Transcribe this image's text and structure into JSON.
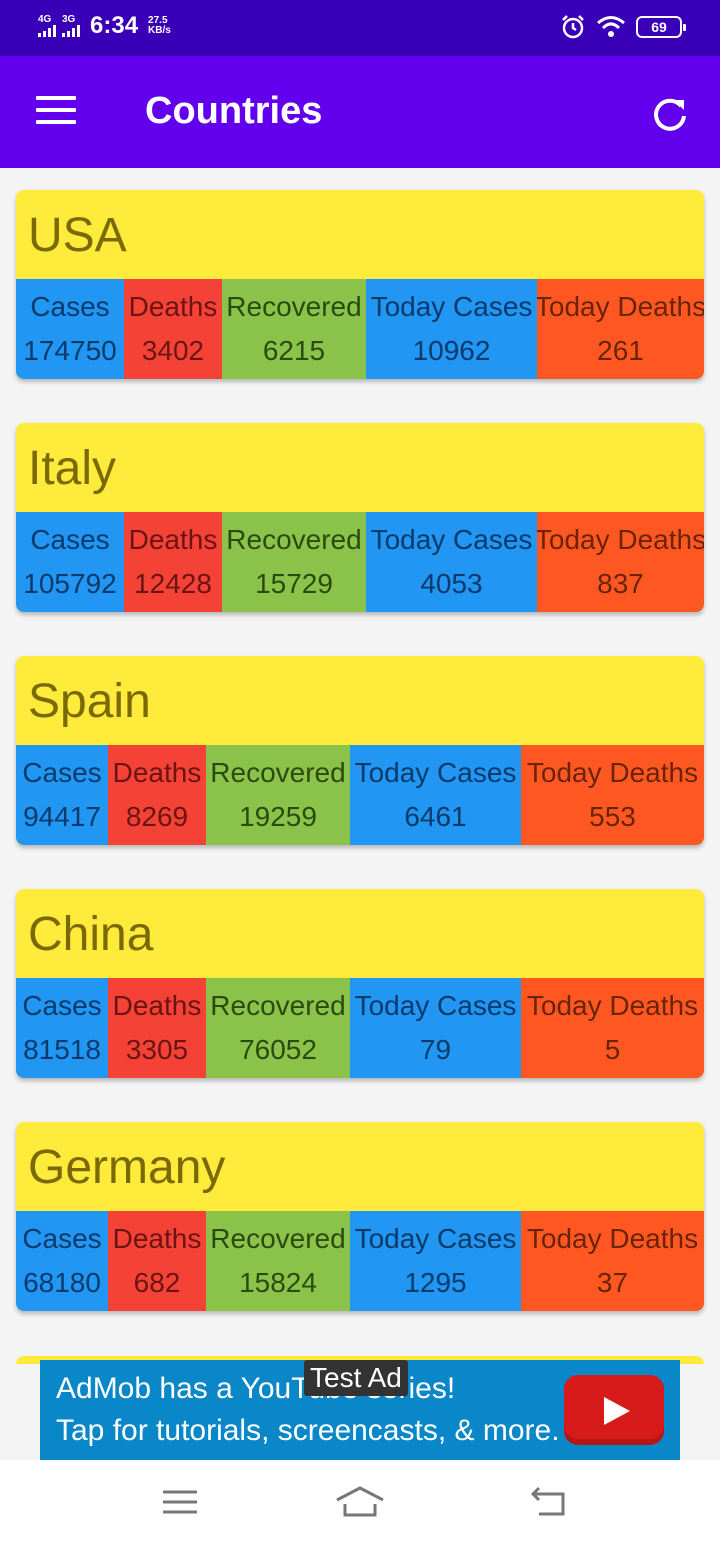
{
  "status_bar": {
    "net1": "4G",
    "net2": "3G",
    "time": "6:34",
    "speed_value": "27.5",
    "speed_unit": "KB/s",
    "battery": "69"
  },
  "app_bar": {
    "title": "Countries"
  },
  "labels": {
    "cases": "Cases",
    "deaths": "Deaths",
    "recovered": "Recovered",
    "today_cases": "Today Cases",
    "today_deaths": "Today Deaths"
  },
  "countries": [
    {
      "name": "USA",
      "cases": "174750",
      "deaths": "3402",
      "recovered": "6215",
      "today_cases": "10962",
      "today_deaths": "261"
    },
    {
      "name": "Italy",
      "cases": "105792",
      "deaths": "12428",
      "recovered": "15729",
      "today_cases": "4053",
      "today_deaths": "837"
    },
    {
      "name": "Spain",
      "cases": "94417",
      "deaths": "8269",
      "recovered": "19259",
      "today_cases": "6461",
      "today_deaths": "553"
    },
    {
      "name": "China",
      "cases": "81518",
      "deaths": "3305",
      "recovered": "76052",
      "today_cases": "79",
      "today_deaths": "5"
    },
    {
      "name": "Germany",
      "cases": "68180",
      "deaths": "682",
      "recovered": "15824",
      "today_cases": "1295",
      "today_deaths": "37"
    }
  ],
  "ad": {
    "line1": "AdMob has a YouTube series!",
    "line2": "Tap for tutorials, screencasts, & more.",
    "badge": "Test Ad"
  },
  "colors": {
    "status_bar": "#3a00b8",
    "app_bar": "#6200ee",
    "card": "#ffeb3b",
    "cases": "#2196f3",
    "deaths": "#f44336",
    "recovered": "#8bc34a",
    "today_deaths": "#ff5722"
  }
}
